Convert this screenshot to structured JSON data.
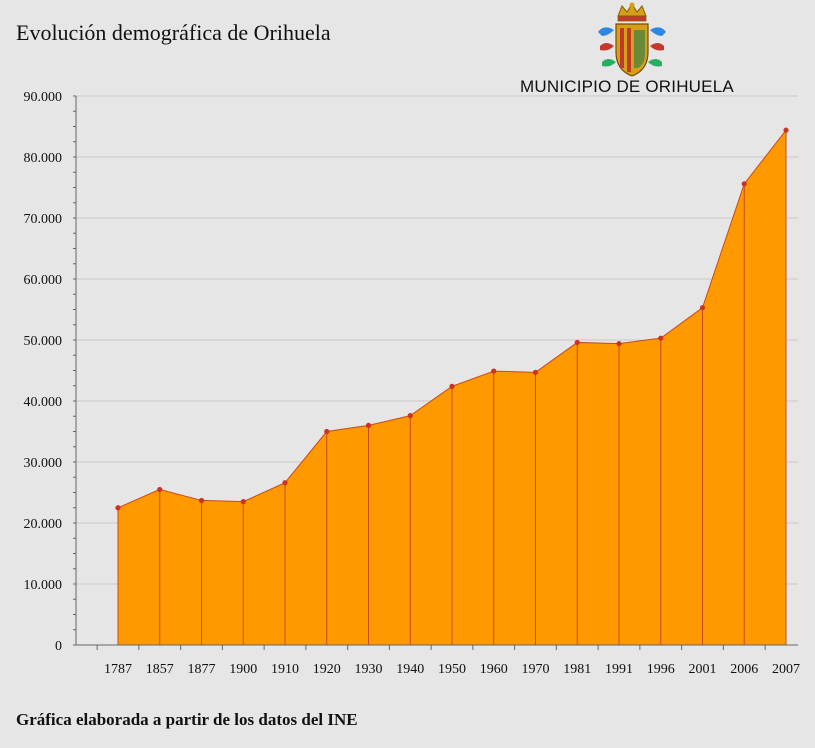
{
  "header": {
    "title": "Evolución demográfica de Orihuela",
    "municipio": "MUNICIPIO DE ORIHUELA"
  },
  "footer": {
    "note": "Gráfica elaborada a partir de los datos del INE"
  },
  "colors": {
    "area": "#ff9900",
    "line": "#c84a1a",
    "marker": "#cc3322",
    "grid": "#c8c8c8",
    "background": "#e6e6e6"
  },
  "chart_data": {
    "type": "area",
    "title": "Evolución demográfica de Orihuela",
    "xlabel": "",
    "ylabel": "",
    "ylim": [
      0,
      90000
    ],
    "grid": true,
    "categories": [
      "1787",
      "1857",
      "1877",
      "1900",
      "1910",
      "1920",
      "1930",
      "1940",
      "1950",
      "1960",
      "1970",
      "1981",
      "1991",
      "1996",
      "2001",
      "2006",
      "2007"
    ],
    "values": [
      22500,
      25500,
      23700,
      23500,
      26600,
      35000,
      36000,
      37600,
      42400,
      44900,
      44700,
      49600,
      49400,
      50300,
      55300,
      75600,
      84400
    ],
    "yticks": [
      0,
      10000,
      20000,
      30000,
      40000,
      50000,
      60000,
      70000,
      80000,
      90000
    ],
    "ytick_labels": [
      "0",
      "10.000",
      "20.000",
      "30.000",
      "40.000",
      "50.000",
      "60.000",
      "70.000",
      "80.000",
      "90.000"
    ]
  }
}
